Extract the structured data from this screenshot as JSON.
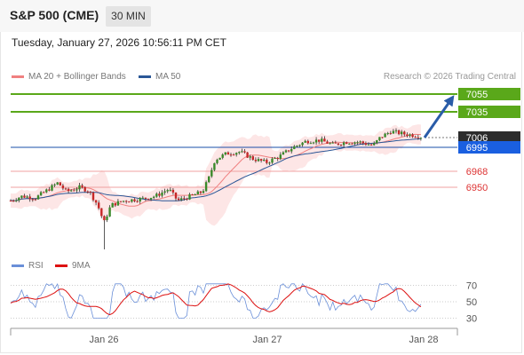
{
  "header": {
    "title": "S&P 500 (CME)",
    "timeframe": "30 MIN"
  },
  "datetime": "Tuesday, January 27, 2026 10:56:11 PM CET",
  "legend": {
    "ma20": {
      "label": "MA 20 + Bollinger Bands",
      "color": "#f08080"
    },
    "ma50": {
      "label": "MA 50",
      "color": "#2b5797"
    },
    "credit": "Research © 2026 Trading Central"
  },
  "rsi_legend": {
    "rsi": {
      "label": "RSI",
      "color": "#6a8fd8"
    },
    "ma9": {
      "label": "9MA",
      "color": "#dd1111"
    }
  },
  "chart_data": {
    "type": "candlestick",
    "x_ticks": [
      "Jan 26",
      "Jan 27",
      "Jan 28"
    ],
    "price_levels": [
      {
        "label": "7055",
        "value": 7055,
        "type": "resistance",
        "color": "#5aa81a"
      },
      {
        "label": "7035",
        "value": 7035,
        "type": "resistance",
        "color": "#5aa81a"
      },
      {
        "label": "7006",
        "value": 7006,
        "type": "last",
        "color": "#2c2c2c"
      },
      {
        "label": "6995",
        "value": 6995,
        "type": "pivot",
        "color": "#1a5fe0"
      },
      {
        "label": "6968",
        "value": 6968,
        "type": "support",
        "color": "#dd3333"
      },
      {
        "label": "6950",
        "value": 6950,
        "type": "support",
        "color": "#dd3333"
      }
    ],
    "price_range": [
      6875,
      7070
    ],
    "rsi": {
      "ticks": [
        70,
        50,
        30
      ],
      "range": [
        20,
        80
      ]
    },
    "forecast_arrow": {
      "from_price": 7006,
      "to_price": 7055,
      "direction": "up"
    }
  }
}
